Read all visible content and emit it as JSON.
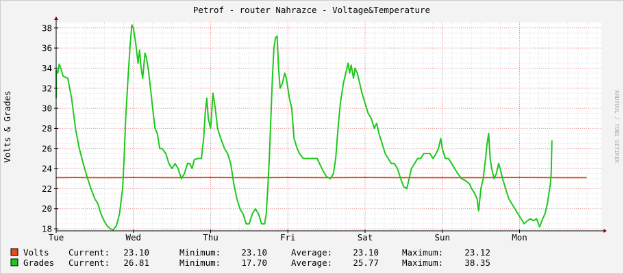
{
  "chart_data": {
    "type": "line",
    "title": "Petrof - router Nahrazce - Voltage&Temperature",
    "ylabel": "Volts & Grades",
    "watermark": "RRDTOOL / TOBI OETIKER",
    "ylim": [
      17.8,
      38.6
    ],
    "yticks": [
      18,
      20,
      22,
      24,
      26,
      28,
      30,
      32,
      34,
      36,
      38
    ],
    "x_range": [
      0,
      7.06
    ],
    "day_labels": [
      "Tue",
      "Wed",
      "Thu",
      "Fri",
      "Sat",
      "Sun",
      "Mon"
    ],
    "day_label_pos": [
      0,
      1,
      2,
      3,
      4,
      5,
      6
    ],
    "grid": true,
    "series": [
      {
        "name": "Volts",
        "color": "#e64c1a",
        "current": "23.10",
        "minimum": "23.10",
        "average": "23.10",
        "maximum": "23.12",
        "points": [
          [
            0.0,
            23.1
          ],
          [
            0.25,
            23.12
          ],
          [
            0.5,
            23.1
          ],
          [
            0.75,
            23.1
          ],
          [
            1.0,
            23.12
          ],
          [
            1.5,
            23.1
          ],
          [
            2.0,
            23.12
          ],
          [
            2.5,
            23.1
          ],
          [
            3.0,
            23.12
          ],
          [
            3.5,
            23.1
          ],
          [
            4.0,
            23.12
          ],
          [
            4.5,
            23.1
          ],
          [
            5.0,
            23.1
          ],
          [
            5.5,
            23.1
          ],
          [
            6.0,
            23.12
          ],
          [
            6.5,
            23.1
          ],
          [
            6.87,
            23.1
          ]
        ]
      },
      {
        "name": "Grades",
        "color": "#1dc81d",
        "current": "26.81",
        "minimum": "17.70",
        "average": "25.77",
        "maximum": "38.35",
        "points": [
          [
            -0.09,
            31.0
          ],
          [
            -0.07,
            32.0
          ],
          [
            -0.05,
            33.3
          ],
          [
            -0.03,
            31.7
          ],
          [
            0.0,
            33.8
          ],
          [
            0.02,
            33.5
          ],
          [
            0.04,
            34.4
          ],
          [
            0.06,
            34.0
          ],
          [
            0.09,
            33.2
          ],
          [
            0.15,
            33.0
          ],
          [
            0.2,
            31.0
          ],
          [
            0.25,
            28.0
          ],
          [
            0.3,
            26.0
          ],
          [
            0.35,
            24.5
          ],
          [
            0.4,
            23.2
          ],
          [
            0.45,
            22.0
          ],
          [
            0.5,
            21.0
          ],
          [
            0.54,
            20.5
          ],
          [
            0.58,
            19.5
          ],
          [
            0.62,
            18.8
          ],
          [
            0.66,
            18.3
          ],
          [
            0.7,
            18.0
          ],
          [
            0.74,
            17.9
          ],
          [
            0.78,
            18.3
          ],
          [
            0.82,
            19.5
          ],
          [
            0.86,
            22.0
          ],
          [
            0.88,
            25.0
          ],
          [
            0.9,
            29.0
          ],
          [
            0.93,
            33.0
          ],
          [
            0.96,
            36.5
          ],
          [
            0.98,
            38.3
          ],
          [
            1.0,
            38.0
          ],
          [
            1.03,
            36.5
          ],
          [
            1.06,
            34.5
          ],
          [
            1.08,
            35.8
          ],
          [
            1.1,
            34.0
          ],
          [
            1.12,
            33.0
          ],
          [
            1.15,
            35.5
          ],
          [
            1.17,
            35.0
          ],
          [
            1.2,
            33.5
          ],
          [
            1.25,
            30.0
          ],
          [
            1.28,
            28.0
          ],
          [
            1.31,
            27.5
          ],
          [
            1.34,
            26.0
          ],
          [
            1.37,
            26.0
          ],
          [
            1.42,
            25.5
          ],
          [
            1.46,
            24.5
          ],
          [
            1.5,
            24.0
          ],
          [
            1.54,
            24.5
          ],
          [
            1.58,
            24.0
          ],
          [
            1.62,
            23.0
          ],
          [
            1.66,
            23.5
          ],
          [
            1.7,
            24.5
          ],
          [
            1.73,
            24.5
          ],
          [
            1.76,
            24.0
          ],
          [
            1.79,
            24.9
          ],
          [
            1.84,
            25.0
          ],
          [
            1.88,
            25.0
          ],
          [
            1.91,
            27.0
          ],
          [
            1.93,
            29.5
          ],
          [
            1.95,
            31.0
          ],
          [
            1.97,
            29.0
          ],
          [
            2.0,
            28.0
          ],
          [
            2.03,
            31.5
          ],
          [
            2.06,
            30.0
          ],
          [
            2.09,
            28.0
          ],
          [
            2.13,
            27.0
          ],
          [
            2.18,
            26.0
          ],
          [
            2.22,
            25.5
          ],
          [
            2.26,
            24.5
          ],
          [
            2.3,
            22.5
          ],
          [
            2.34,
            21.0
          ],
          [
            2.38,
            20.0
          ],
          [
            2.42,
            19.5
          ],
          [
            2.46,
            18.5
          ],
          [
            2.5,
            18.5
          ],
          [
            2.54,
            19.5
          ],
          [
            2.58,
            20.0
          ],
          [
            2.62,
            19.5
          ],
          [
            2.66,
            18.5
          ],
          [
            2.7,
            18.5
          ],
          [
            2.72,
            19.5
          ],
          [
            2.74,
            22.0
          ],
          [
            2.76,
            25.0
          ],
          [
            2.78,
            29.0
          ],
          [
            2.8,
            33.0
          ],
          [
            2.82,
            36.0
          ],
          [
            2.84,
            37.0
          ],
          [
            2.86,
            37.2
          ],
          [
            2.88,
            34.0
          ],
          [
            2.9,
            32.0
          ],
          [
            2.93,
            32.5
          ],
          [
            2.96,
            33.5
          ],
          [
            2.98,
            33.0
          ],
          [
            3.02,
            31.0
          ],
          [
            3.05,
            30.0
          ],
          [
            3.08,
            27.0
          ],
          [
            3.12,
            26.0
          ],
          [
            3.15,
            25.5
          ],
          [
            3.2,
            25.0
          ],
          [
            3.3,
            25.0
          ],
          [
            3.38,
            25.0
          ],
          [
            3.44,
            24.0
          ],
          [
            3.5,
            23.2
          ],
          [
            3.55,
            23.0
          ],
          [
            3.59,
            23.5
          ],
          [
            3.62,
            25.0
          ],
          [
            3.65,
            28.0
          ],
          [
            3.68,
            30.5
          ],
          [
            3.72,
            32.5
          ],
          [
            3.75,
            33.5
          ],
          [
            3.78,
            34.5
          ],
          [
            3.8,
            33.5
          ],
          [
            3.82,
            34.3
          ],
          [
            3.85,
            33.0
          ],
          [
            3.87,
            34.0
          ],
          [
            3.9,
            33.5
          ],
          [
            3.93,
            32.5
          ],
          [
            3.96,
            31.5
          ],
          [
            4.0,
            30.5
          ],
          [
            4.04,
            29.5
          ],
          [
            4.08,
            29.0
          ],
          [
            4.12,
            28.0
          ],
          [
            4.15,
            28.5
          ],
          [
            4.18,
            27.5
          ],
          [
            4.22,
            26.5
          ],
          [
            4.26,
            25.5
          ],
          [
            4.3,
            25.0
          ],
          [
            4.34,
            24.5
          ],
          [
            4.38,
            24.5
          ],
          [
            4.42,
            24.0
          ],
          [
            4.46,
            23.0
          ],
          [
            4.5,
            22.2
          ],
          [
            4.54,
            22.0
          ],
          [
            4.57,
            23.0
          ],
          [
            4.6,
            24.0
          ],
          [
            4.64,
            24.5
          ],
          [
            4.68,
            25.0
          ],
          [
            4.72,
            25.0
          ],
          [
            4.76,
            25.5
          ],
          [
            4.8,
            25.5
          ],
          [
            4.84,
            25.5
          ],
          [
            4.88,
            25.0
          ],
          [
            4.92,
            25.5
          ],
          [
            4.95,
            26.0
          ],
          [
            4.98,
            27.0
          ],
          [
            5.0,
            26.0
          ],
          [
            5.04,
            25.0
          ],
          [
            5.08,
            25.0
          ],
          [
            5.12,
            24.5
          ],
          [
            5.16,
            24.0
          ],
          [
            5.2,
            23.5
          ],
          [
            5.25,
            23.0
          ],
          [
            5.3,
            22.8
          ],
          [
            5.35,
            22.5
          ],
          [
            5.38,
            22.0
          ],
          [
            5.42,
            21.5
          ],
          [
            5.45,
            21.0
          ],
          [
            5.47,
            19.8
          ],
          [
            5.5,
            22.0
          ],
          [
            5.53,
            23.0
          ],
          [
            5.56,
            25.0
          ],
          [
            5.58,
            26.5
          ],
          [
            5.6,
            27.5
          ],
          [
            5.62,
            25.0
          ],
          [
            5.64,
            24.0
          ],
          [
            5.67,
            23.0
          ],
          [
            5.7,
            23.5
          ],
          [
            5.73,
            24.5
          ],
          [
            5.75,
            24.0
          ],
          [
            5.78,
            23.0
          ],
          [
            5.82,
            22.0
          ],
          [
            5.86,
            21.0
          ],
          [
            5.9,
            20.5
          ],
          [
            5.94,
            20.0
          ],
          [
            5.98,
            19.5
          ],
          [
            6.02,
            19.0
          ],
          [
            6.06,
            18.5
          ],
          [
            6.1,
            18.8
          ],
          [
            6.14,
            19.0
          ],
          [
            6.18,
            18.8
          ],
          [
            6.22,
            19.0
          ],
          [
            6.26,
            18.2
          ],
          [
            6.3,
            19.0
          ],
          [
            6.33,
            19.5
          ],
          [
            6.36,
            20.5
          ],
          [
            6.38,
            21.5
          ],
          [
            6.4,
            22.5
          ],
          [
            6.41,
            23.5
          ],
          [
            6.42,
            26.81
          ]
        ]
      }
    ]
  },
  "legend": [
    {
      "name": "Volts",
      "color": "#e64c1a",
      "current_label": "Current:",
      "current": "23.10",
      "minimum_label": "Minimum:",
      "minimum": "23.10",
      "average_label": "Average:",
      "average": "23.10",
      "maximum_label": "Maximum:",
      "maximum": "23.12"
    },
    {
      "name": "Grades",
      "color": "#1dc81d",
      "current_label": "Current:",
      "current": "26.81",
      "minimum_label": "Minimum:",
      "minimum": "17.70",
      "average_label": "Average:",
      "average": "25.77",
      "maximum_label": "Maximum:",
      "maximum": "38.35"
    }
  ]
}
